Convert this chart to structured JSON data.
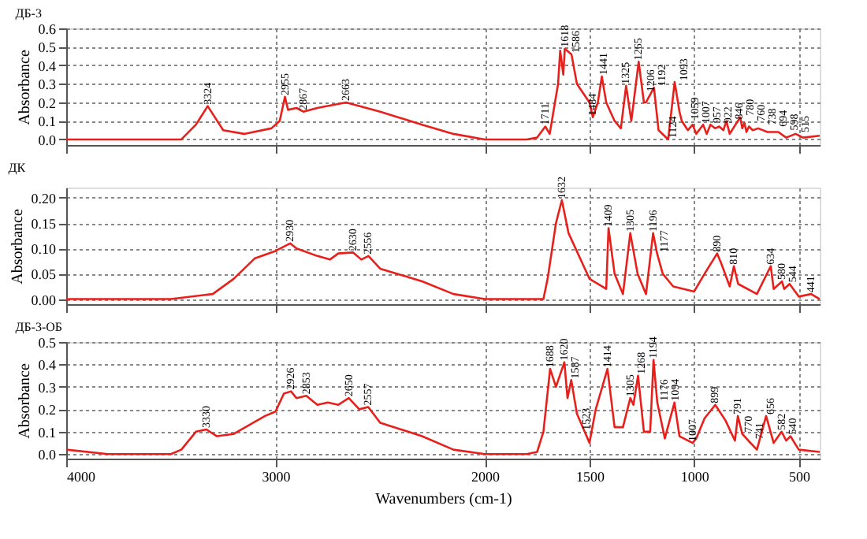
{
  "chart_data": [
    {
      "type": "line",
      "title": "ДБ-3",
      "ylabel": "Absorbance",
      "grid": true,
      "tick_labels": "y",
      "xlim": [
        4000,
        400
      ],
      "xticks": [
        4000,
        3000,
        2000,
        1500,
        1000,
        500
      ],
      "ylim": [
        -0.03,
        0.6
      ],
      "yticks": [
        {
          "value": 0,
          "label": "0.0"
        },
        {
          "value": 0.1,
          "label": "0.1"
        },
        {
          "value": 0.2,
          "label": "0.2"
        },
        {
          "value": 0.3,
          "label": "0.3"
        },
        {
          "value": 0.4,
          "label": "0.4"
        },
        {
          "value": 0.5,
          "label": "0.5"
        },
        {
          "value": 0.6,
          "label": "0.6"
        }
      ],
      "series": [
        {
          "color": "#e8201c",
          "x": [
            4000,
            3600,
            3450,
            3380,
            3324,
            3250,
            3150,
            3020,
            2980,
            2955,
            2940,
            2900,
            2867,
            2800,
            2663,
            2500,
            2300,
            2150,
            2000,
            1800,
            1750,
            1711,
            1690,
            1650,
            1640,
            1625,
            1618,
            1586,
            1560,
            1500,
            1484,
            1460,
            1441,
            1420,
            1380,
            1350,
            1325,
            1300,
            1265,
            1240,
            1230,
            1206,
            1192,
            1170,
            1124,
            1093,
            1070,
            1059,
            1030,
            1007,
            990,
            957,
            940,
            922,
            900,
            880,
            860,
            846,
            830,
            780,
            770,
            760,
            750,
            738,
            720,
            694,
            650,
            598,
            560,
            515,
            480,
            400
          ],
          "values": [
            0.0,
            0.0,
            0.0,
            0.08,
            0.18,
            0.05,
            0.03,
            0.06,
            0.1,
            0.23,
            0.16,
            0.17,
            0.15,
            0.17,
            0.2,
            0.15,
            0.08,
            0.03,
            0.0,
            0.0,
            0.01,
            0.07,
            0.03,
            0.3,
            0.48,
            0.35,
            0.49,
            0.46,
            0.3,
            0.2,
            0.12,
            0.2,
            0.34,
            0.2,
            0.1,
            0.06,
            0.29,
            0.1,
            0.42,
            0.2,
            0.2,
            0.25,
            0.28,
            0.05,
            0.0,
            0.31,
            0.15,
            0.1,
            0.05,
            0.08,
            0.03,
            0.08,
            0.03,
            0.08,
            0.06,
            0.07,
            0.05,
            0.1,
            0.03,
            0.12,
            0.06,
            0.09,
            0.04,
            0.07,
            0.05,
            0.06,
            0.04,
            0.04,
            0.01,
            0.03,
            0.01,
            0.02
          ]
        }
      ],
      "annotations": [
        {
          "text": "3324",
          "x": 3324,
          "y": 0.18
        },
        {
          "text": "2955",
          "x": 2955,
          "y": 0.23
        },
        {
          "text": "2867",
          "x": 2867,
          "y": 0.15
        },
        {
          "text": "2663",
          "x": 2663,
          "y": 0.2
        },
        {
          "text": "1711",
          "x": 1711,
          "y": 0.07
        },
        {
          "text": "1618",
          "x": 1618,
          "y": 0.49
        },
        {
          "text": "1586",
          "x": 1586,
          "y": 0.46
        },
        {
          "text": "1484",
          "x": 1484,
          "y": 0.12
        },
        {
          "text": "1441",
          "x": 1441,
          "y": 0.34
        },
        {
          "text": "1325",
          "x": 1325,
          "y": 0.29
        },
        {
          "text": "1265",
          "x": 1265,
          "y": 0.42
        },
        {
          "text": "1206",
          "x": 1206,
          "y": 0.25
        },
        {
          "text": "1192",
          "x": 1192,
          "y": 0.28
        },
        {
          "text": "1124",
          "x": 1124,
          "y": 0.0
        },
        {
          "text": "1093",
          "x": 1093,
          "y": 0.31
        },
        {
          "text": "1059",
          "x": 1059,
          "y": 0.1
        },
        {
          "text": "1007",
          "x": 1007,
          "y": 0.08
        },
        {
          "text": "957",
          "x": 957,
          "y": 0.08
        },
        {
          "text": "922",
          "x": 922,
          "y": 0.08
        },
        {
          "text": "846",
          "x": 846,
          "y": 0.1
        },
        {
          "text": "780",
          "x": 780,
          "y": 0.12
        },
        {
          "text": "760",
          "x": 760,
          "y": 0.09
        },
        {
          "text": "738",
          "x": 738,
          "y": 0.07
        },
        {
          "text": "694",
          "x": 694,
          "y": 0.06
        },
        {
          "text": "598",
          "x": 598,
          "y": 0.04
        },
        {
          "text": "515",
          "x": 515,
          "y": 0.03
        }
      ]
    },
    {
      "type": "line",
      "title": "ДК",
      "ylabel": "Absorbance",
      "grid": true,
      "tick_labels": "y",
      "xlim": [
        4000,
        400
      ],
      "xticks": [
        4000,
        3000,
        2000,
        1500,
        1000,
        500
      ],
      "ylim": [
        -0.01,
        0.22
      ],
      "yticks": [
        {
          "value": 0,
          "label": "0.00"
        },
        {
          "value": 0.05,
          "label": "0.05"
        },
        {
          "value": 0.1,
          "label": "0.10"
        },
        {
          "value": 0.15,
          "label": "0.15"
        },
        {
          "value": 0.2,
          "label": "0.20"
        }
      ],
      "series": [
        {
          "color": "#e8201c",
          "x": [
            4000,
            3500,
            3300,
            3200,
            3100,
            3000,
            2930,
            2900,
            2800,
            2740,
            2700,
            2630,
            2590,
            2556,
            2500,
            2300,
            2150,
            2000,
            1800,
            1720,
            1700,
            1660,
            1632,
            1600,
            1500,
            1420,
            1409,
            1380,
            1340,
            1305,
            1270,
            1230,
            1196,
            1177,
            1150,
            1100,
            1000,
            950,
            890,
            870,
            830,
            810,
            790,
            700,
            634,
            620,
            580,
            570,
            544,
            500,
            441,
            400
          ],
          "values": [
            0.0,
            0.0,
            0.01,
            0.04,
            0.08,
            0.095,
            0.11,
            0.1,
            0.085,
            0.078,
            0.09,
            0.092,
            0.078,
            0.085,
            0.06,
            0.035,
            0.01,
            0.0,
            0.0,
            0.0,
            0.04,
            0.15,
            0.195,
            0.13,
            0.04,
            0.02,
            0.14,
            0.05,
            0.01,
            0.13,
            0.05,
            0.01,
            0.13,
            0.09,
            0.05,
            0.025,
            0.015,
            0.05,
            0.09,
            0.07,
            0.025,
            0.065,
            0.03,
            0.01,
            0.065,
            0.02,
            0.035,
            0.02,
            0.03,
            0.005,
            0.01,
            0.0
          ]
        }
      ],
      "annotations": [
        {
          "text": "2930",
          "x": 2930,
          "y": 0.11
        },
        {
          "text": "2630",
          "x": 2630,
          "y": 0.092
        },
        {
          "text": "2556",
          "x": 2556,
          "y": 0.085
        },
        {
          "text": "1632",
          "x": 1632,
          "y": 0.195
        },
        {
          "text": "1409",
          "x": 1409,
          "y": 0.14
        },
        {
          "text": "1305",
          "x": 1305,
          "y": 0.13
        },
        {
          "text": "1196",
          "x": 1196,
          "y": 0.13
        },
        {
          "text": "1177",
          "x": 1177,
          "y": 0.09
        },
        {
          "text": "890",
          "x": 890,
          "y": 0.09
        },
        {
          "text": "810",
          "x": 810,
          "y": 0.065
        },
        {
          "text": "634",
          "x": 634,
          "y": 0.065
        },
        {
          "text": "580",
          "x": 580,
          "y": 0.035
        },
        {
          "text": "544",
          "x": 544,
          "y": 0.03
        },
        {
          "text": "441",
          "x": 441,
          "y": 0.01
        }
      ]
    },
    {
      "type": "line",
      "title": "ДБ-3-ОБ",
      "ylabel": "Absorbance",
      "xlabel": "Wavenumbers (cm-1)",
      "grid": true,
      "xlim": [
        4000,
        400
      ],
      "xticks": [
        4000,
        3000,
        2000,
        1500,
        1000,
        500
      ],
      "ylim": [
        -0.02,
        0.5
      ],
      "yticks": [
        {
          "value": 0,
          "label": "0.0"
        },
        {
          "value": 0.1,
          "label": "0.1"
        },
        {
          "value": 0.2,
          "label": "0.2"
        },
        {
          "value": 0.3,
          "label": "0.3"
        },
        {
          "value": 0.4,
          "label": "0.4"
        },
        {
          "value": 0.5,
          "label": "0.5"
        }
      ],
      "series": [
        {
          "color": "#e8201c",
          "x": [
            4000,
            3800,
            3500,
            3450,
            3380,
            3330,
            3280,
            3200,
            3050,
            3000,
            2960,
            2926,
            2900,
            2853,
            2800,
            2750,
            2700,
            2650,
            2600,
            2557,
            2500,
            2300,
            2150,
            2000,
            1800,
            1750,
            1720,
            1688,
            1660,
            1620,
            1605,
            1587,
            1560,
            1523,
            1500,
            1470,
            1414,
            1380,
            1340,
            1305,
            1290,
            1268,
            1240,
            1210,
            1194,
            1176,
            1140,
            1094,
            1070,
            1007,
            990,
            950,
            899,
            850,
            805,
            791,
            770,
            741,
            700,
            656,
            620,
            582,
            560,
            540,
            500,
            400
          ],
          "values": [
            0.02,
            0.0,
            0.0,
            0.02,
            0.1,
            0.11,
            0.08,
            0.09,
            0.17,
            0.19,
            0.27,
            0.28,
            0.25,
            0.26,
            0.22,
            0.23,
            0.22,
            0.25,
            0.2,
            0.21,
            0.14,
            0.08,
            0.02,
            0.0,
            0.0,
            0.01,
            0.1,
            0.38,
            0.3,
            0.41,
            0.25,
            0.33,
            0.18,
            0.1,
            0.05,
            0.2,
            0.38,
            0.12,
            0.12,
            0.25,
            0.22,
            0.35,
            0.1,
            0.1,
            0.42,
            0.23,
            0.07,
            0.23,
            0.08,
            0.05,
            0.07,
            0.16,
            0.22,
            0.15,
            0.06,
            0.17,
            0.09,
            0.06,
            0.02,
            0.17,
            0.05,
            0.1,
            0.06,
            0.08,
            0.02,
            0.01
          ]
        }
      ],
      "annotations": [
        {
          "text": "3330",
          "x": 3330,
          "y": 0.11
        },
        {
          "text": "2926",
          "x": 2926,
          "y": 0.28
        },
        {
          "text": "2853",
          "x": 2853,
          "y": 0.26
        },
        {
          "text": "2650",
          "x": 2650,
          "y": 0.25
        },
        {
          "text": "2557",
          "x": 2557,
          "y": 0.21
        },
        {
          "text": "1688",
          "x": 1688,
          "y": 0.38
        },
        {
          "text": "1620",
          "x": 1620,
          "y": 0.41
        },
        {
          "text": "1587",
          "x": 1587,
          "y": 0.33
        },
        {
          "text": "1523",
          "x": 1523,
          "y": 0.1
        },
        {
          "text": "1414",
          "x": 1414,
          "y": 0.38
        },
        {
          "text": "1305",
          "x": 1305,
          "y": 0.25
        },
        {
          "text": "1268",
          "x": 1268,
          "y": 0.35
        },
        {
          "text": "1194",
          "x": 1194,
          "y": 0.42
        },
        {
          "text": "1176",
          "x": 1176,
          "y": 0.23
        },
        {
          "text": "1094",
          "x": 1094,
          "y": 0.23
        },
        {
          "text": "1007",
          "x": 1007,
          "y": 0.05
        },
        {
          "text": "899",
          "x": 899,
          "y": 0.22
        },
        {
          "text": "791",
          "x": 791,
          "y": 0.17
        },
        {
          "text": "770",
          "x": 770,
          "y": 0.09
        },
        {
          "text": "741",
          "x": 741,
          "y": 0.06
        },
        {
          "text": "656",
          "x": 656,
          "y": 0.17
        },
        {
          "text": "582",
          "x": 582,
          "y": 0.1
        },
        {
          "text": "540",
          "x": 540,
          "y": 0.08
        }
      ]
    }
  ]
}
